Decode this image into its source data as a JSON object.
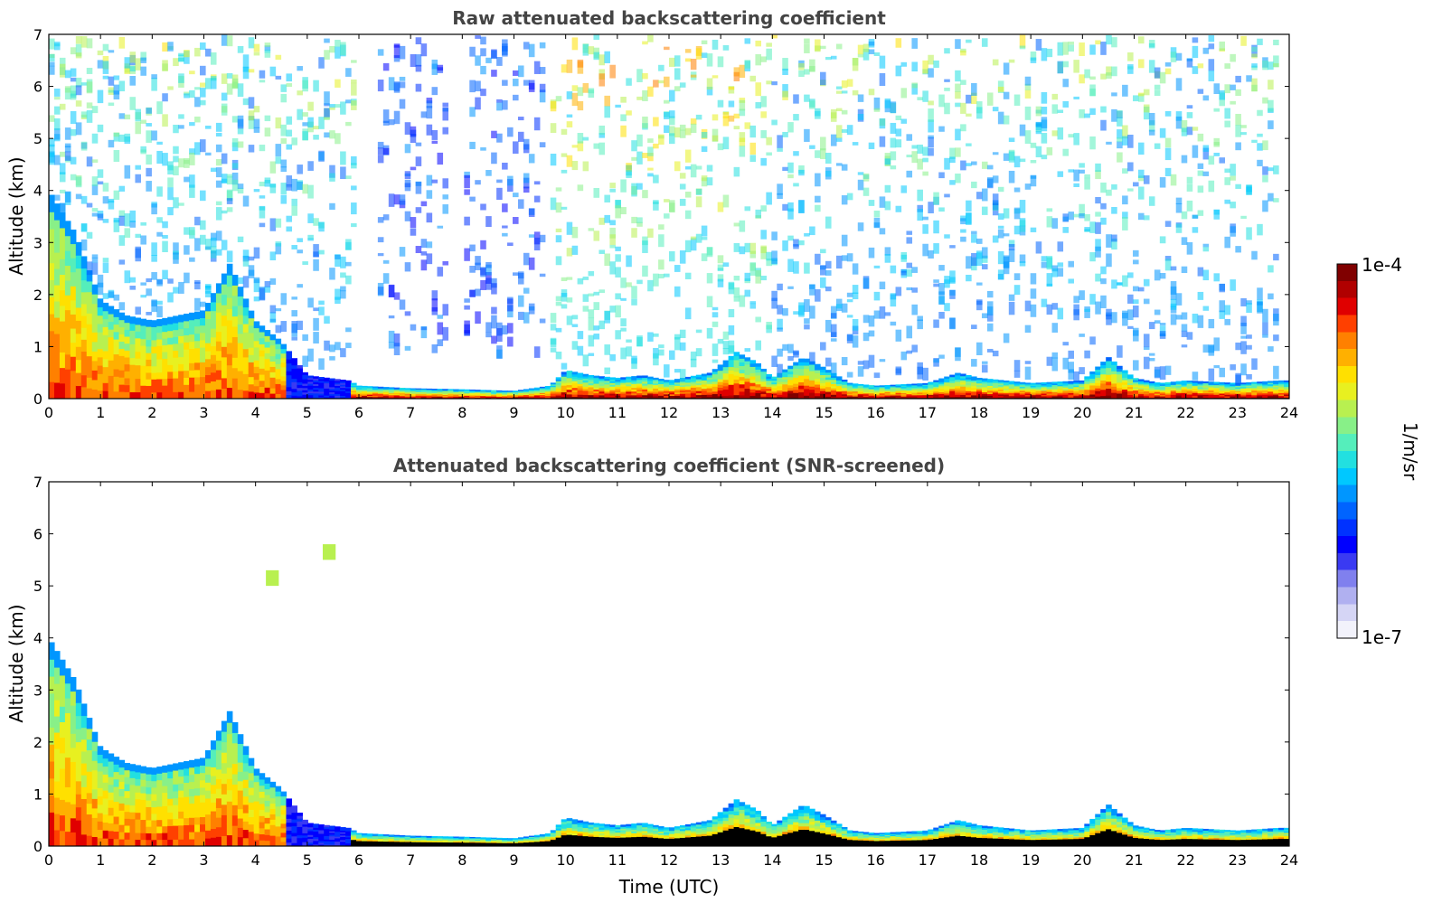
{
  "colormap": {
    "label": "1/m/sr",
    "min_label": "1e-7",
    "max_label": "1e-4",
    "colors": [
      "#f2f2fb",
      "#d5d5f5",
      "#b0b0f0",
      "#8080ee",
      "#3a3af2",
      "#0000ff",
      "#0032ff",
      "#0064ff",
      "#0096ff",
      "#00c8ff",
      "#22e0e0",
      "#55eebb",
      "#88f088",
      "#b8f050",
      "#e8f020",
      "#ffe000",
      "#ffb000",
      "#ff8000",
      "#ff4000",
      "#e00000",
      "#b00000",
      "#800000"
    ]
  },
  "chart_data": [
    {
      "type": "heatmap",
      "title": "Raw attenuated backscattering coefficient",
      "xlabel": "",
      "ylabel": "Altitude (km)",
      "xlim": [
        0,
        24
      ],
      "ylim": [
        0,
        7
      ],
      "xticks": [
        0,
        1,
        2,
        3,
        4,
        5,
        6,
        7,
        8,
        9,
        10,
        11,
        12,
        13,
        14,
        15,
        16,
        17,
        18,
        19,
        20,
        21,
        22,
        23,
        24
      ],
      "yticks": [
        0,
        1,
        2,
        3,
        4,
        5,
        6,
        7
      ],
      "layer_top_km": [
        [
          0,
          4.0
        ],
        [
          0.5,
          3.2
        ],
        [
          1.0,
          1.9
        ],
        [
          1.5,
          1.6
        ],
        [
          2.0,
          1.5
        ],
        [
          2.5,
          1.6
        ],
        [
          3.0,
          1.7
        ],
        [
          3.5,
          2.6
        ],
        [
          4.0,
          1.5
        ],
        [
          4.5,
          1.1
        ],
        [
          5.0,
          0.45
        ],
        [
          5.8,
          0.35
        ],
        [
          6.0,
          0.25
        ],
        [
          7,
          0.2
        ],
        [
          8,
          0.18
        ],
        [
          9,
          0.15
        ],
        [
          9.7,
          0.25
        ],
        [
          10,
          0.55
        ],
        [
          10.5,
          0.45
        ],
        [
          11,
          0.4
        ],
        [
          11.5,
          0.45
        ],
        [
          12,
          0.35
        ],
        [
          12.8,
          0.5
        ],
        [
          13.3,
          0.9
        ],
        [
          13.7,
          0.7
        ],
        [
          14,
          0.4
        ],
        [
          14.6,
          0.8
        ],
        [
          15,
          0.6
        ],
        [
          15.5,
          0.3
        ],
        [
          16,
          0.25
        ],
        [
          17,
          0.3
        ],
        [
          17.6,
          0.5
        ],
        [
          18,
          0.4
        ],
        [
          19,
          0.3
        ],
        [
          20,
          0.35
        ],
        [
          20.5,
          0.8
        ],
        [
          21,
          0.4
        ],
        [
          21.5,
          0.3
        ],
        [
          22,
          0.35
        ],
        [
          23,
          0.3
        ],
        [
          23.8,
          0.35
        ]
      ],
      "noise_cutoff_time": 23.8
    },
    {
      "type": "heatmap",
      "title": "Attenuated backscattering coefficient (SNR-screened)",
      "xlabel": "Time (UTC)",
      "ylabel": "Altitude (km)",
      "xlim": [
        0,
        24
      ],
      "ylim": [
        0,
        7
      ],
      "xticks": [
        0,
        1,
        2,
        3,
        4,
        5,
        6,
        7,
        8,
        9,
        10,
        11,
        12,
        13,
        14,
        15,
        16,
        17,
        18,
        19,
        20,
        21,
        22,
        23,
        24
      ],
      "yticks": [
        0,
        1,
        2,
        3,
        4,
        5,
        6,
        7
      ],
      "layer_top_km": [
        [
          0,
          4.0
        ],
        [
          0.5,
          3.2
        ],
        [
          1.0,
          1.9
        ],
        [
          1.5,
          1.6
        ],
        [
          2.0,
          1.5
        ],
        [
          2.5,
          1.6
        ],
        [
          3.0,
          1.7
        ],
        [
          3.5,
          2.6
        ],
        [
          4.0,
          1.5
        ],
        [
          4.5,
          1.1
        ],
        [
          5.0,
          0.45
        ],
        [
          5.8,
          0.35
        ],
        [
          6.0,
          0.25
        ],
        [
          7,
          0.2
        ],
        [
          8,
          0.18
        ],
        [
          9,
          0.15
        ],
        [
          9.7,
          0.25
        ],
        [
          10,
          0.55
        ],
        [
          10.5,
          0.45
        ],
        [
          11,
          0.4
        ],
        [
          11.5,
          0.45
        ],
        [
          12,
          0.35
        ],
        [
          12.8,
          0.5
        ],
        [
          13.3,
          0.9
        ],
        [
          13.7,
          0.7
        ],
        [
          14,
          0.4
        ],
        [
          14.6,
          0.8
        ],
        [
          15,
          0.6
        ],
        [
          15.5,
          0.3
        ],
        [
          16,
          0.25
        ],
        [
          17,
          0.3
        ],
        [
          17.6,
          0.5
        ],
        [
          18,
          0.4
        ],
        [
          19,
          0.3
        ],
        [
          20,
          0.35
        ],
        [
          20.5,
          0.8
        ],
        [
          21,
          0.4
        ],
        [
          21.5,
          0.3
        ],
        [
          22,
          0.35
        ],
        [
          23,
          0.3
        ],
        [
          23.8,
          0.35
        ]
      ],
      "isolated_features": [
        {
          "t": 4.2,
          "z": 5.0
        },
        {
          "t": 5.3,
          "z": 5.5
        }
      ]
    }
  ]
}
